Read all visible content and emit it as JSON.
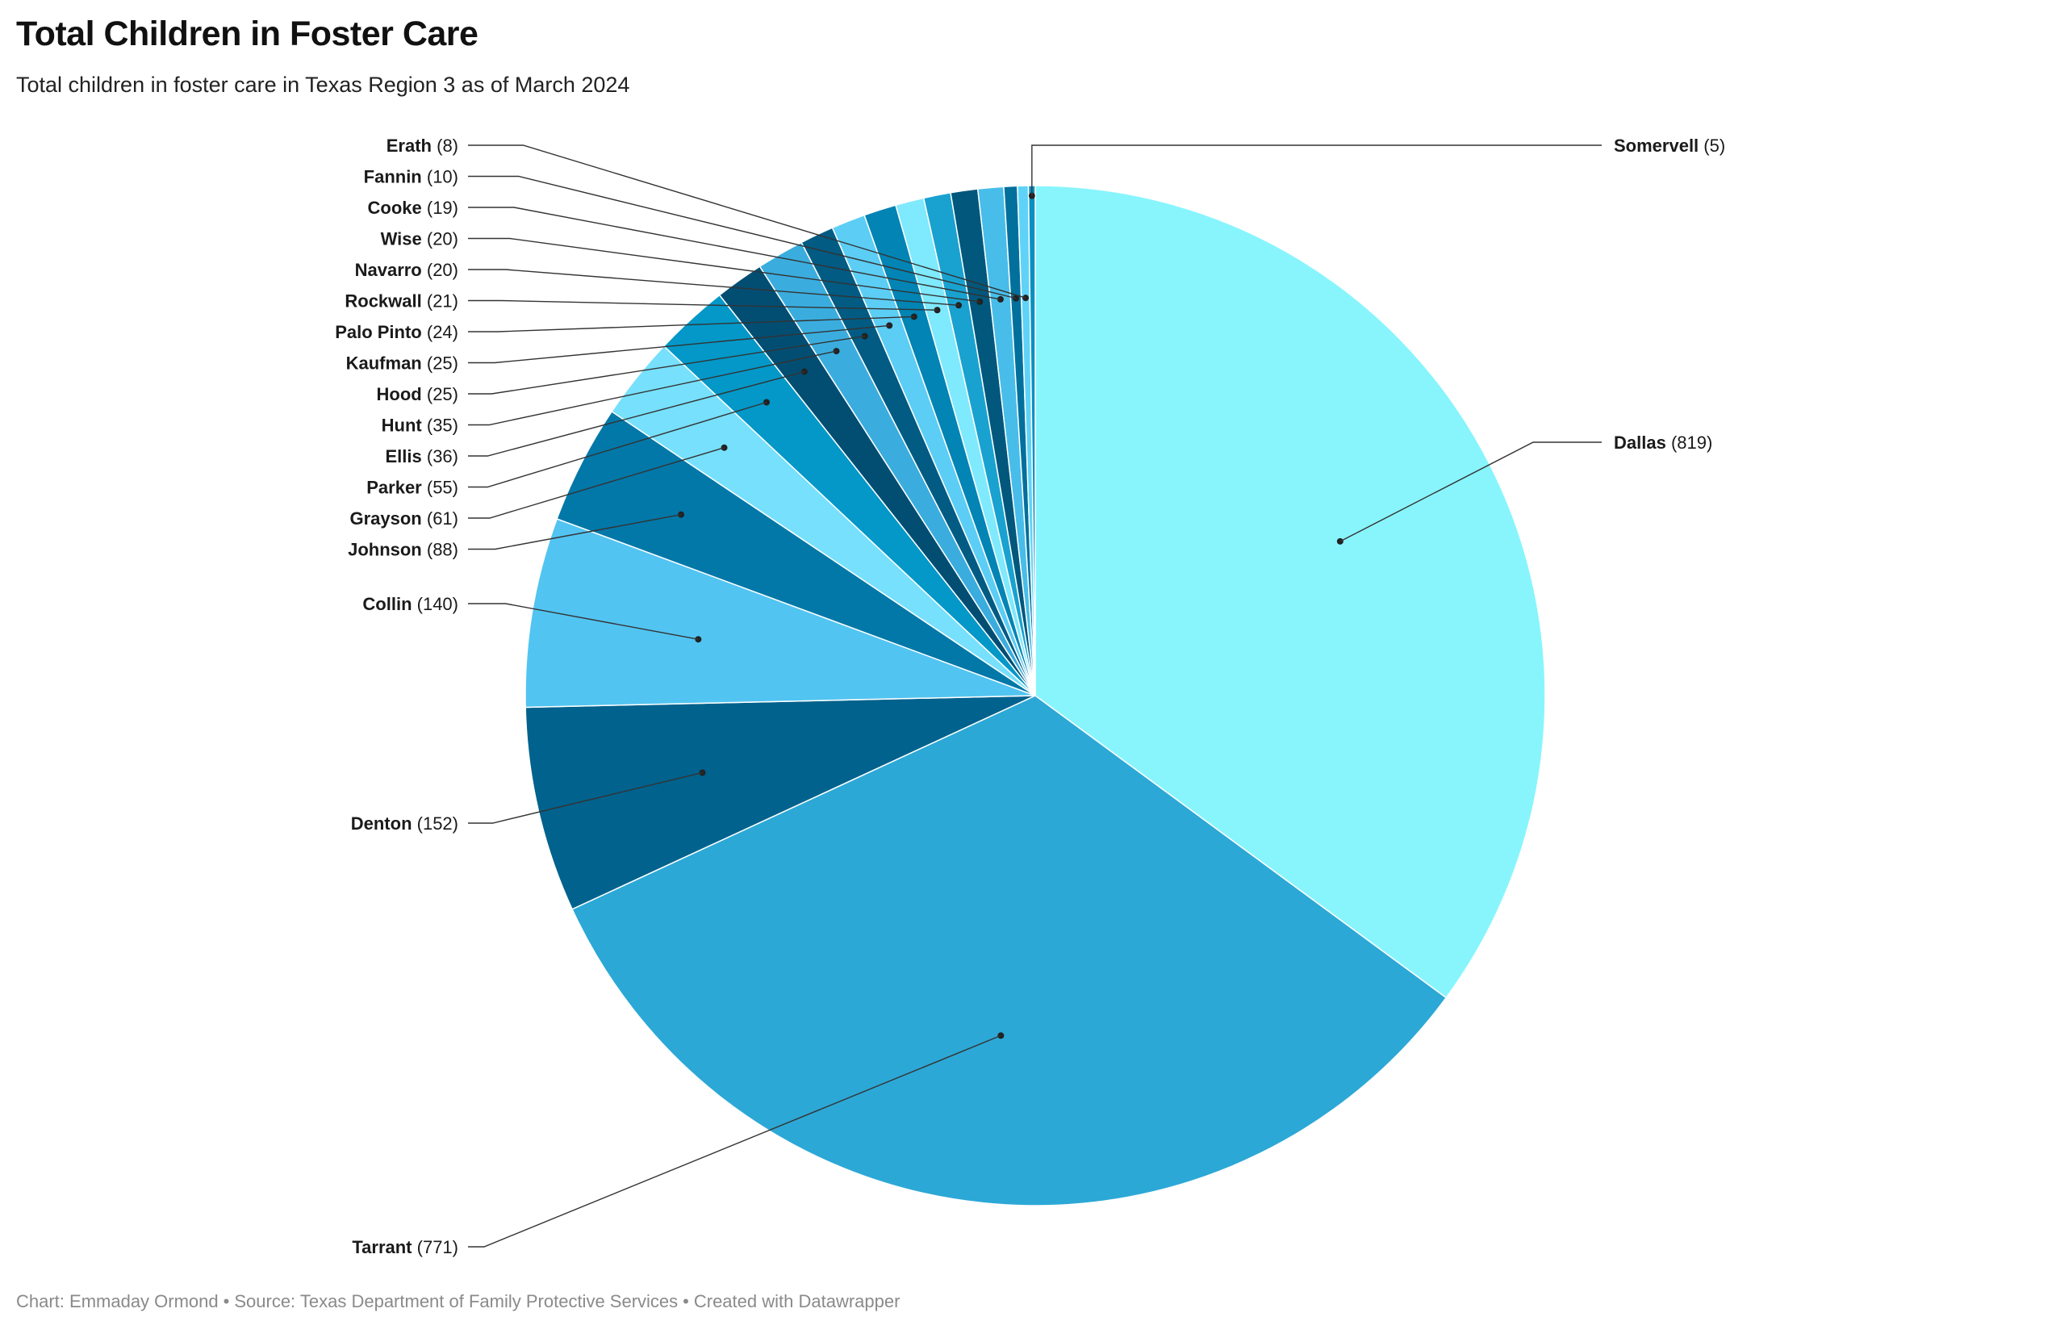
{
  "header": {
    "title": "Total Children in Foster Care",
    "subtitle": "Total children in foster care in Texas Region 3 as of March 2024"
  },
  "footer": {
    "chart_credit": "Chart: Emmaday Ormond",
    "source": "Source: Texas Department of Family Protective Services",
    "created_with": "Created with Datawrapper",
    "separator": "•"
  },
  "chart_data": {
    "type": "pie",
    "title": "Total Children in Foster Care",
    "subtitle": "Total children in foster care in Texas Region 3 as of March 2024",
    "value_format": "({value})",
    "start_angle_deg": 0,
    "direction": "clockwise",
    "slices": [
      {
        "label": "Dallas",
        "value": 819,
        "color": "#88f5fd"
      },
      {
        "label": "Tarrant",
        "value": 771,
        "color": "#2ca8d6"
      },
      {
        "label": "Denton",
        "value": 152,
        "color": "#01628d"
      },
      {
        "label": "Collin",
        "value": 140,
        "color": "#52c4f1"
      },
      {
        "label": "Johnson",
        "value": 88,
        "color": "#0278a8"
      },
      {
        "label": "Grayson",
        "value": 61,
        "color": "#77e0fc"
      },
      {
        "label": "Parker",
        "value": 55,
        "color": "#0398c8"
      },
      {
        "label": "Ellis",
        "value": 36,
        "color": "#024e73"
      },
      {
        "label": "Hunt",
        "value": 35,
        "color": "#3aadde"
      },
      {
        "label": "Hood",
        "value": 25,
        "color": "#015b83"
      },
      {
        "label": "Kaufman",
        "value": 25,
        "color": "#5ccdf5"
      },
      {
        "label": "Palo Pinto",
        "value": 24,
        "color": "#0284b4"
      },
      {
        "label": "Rockwall",
        "value": 21,
        "color": "#7fe9fd"
      },
      {
        "label": "Navarro",
        "value": 20,
        "color": "#19a2d0"
      },
      {
        "label": "Wise",
        "value": 20,
        "color": "#01577c"
      },
      {
        "label": "Cooke",
        "value": 19,
        "color": "#48bde9"
      },
      {
        "label": "Fannin",
        "value": 10,
        "color": "#02709d"
      },
      {
        "label": "Erath",
        "value": 8,
        "color": "#5fd3f7"
      },
      {
        "label": "Somervell",
        "value": 5,
        "color": "#0a90c0"
      }
    ]
  }
}
